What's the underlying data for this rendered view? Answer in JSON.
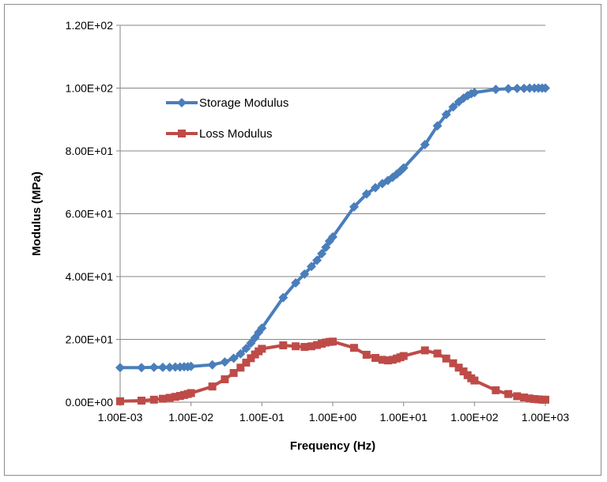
{
  "chart_data": {
    "type": "line",
    "title": "",
    "xlabel": "Frequency (Hz)",
    "ylabel": "Modulus (MPa)",
    "x_scale": "log",
    "xlim": [
      0.001,
      1000
    ],
    "ylim": [
      0,
      120
    ],
    "x_ticks": [
      {
        "value": 0.001,
        "label": "1.00E-03"
      },
      {
        "value": 0.01,
        "label": "1.00E-02"
      },
      {
        "value": 0.1,
        "label": "1.00E-01"
      },
      {
        "value": 1,
        "label": "1.00E+00"
      },
      {
        "value": 10,
        "label": "1.00E+01"
      },
      {
        "value": 100,
        "label": "1.00E+02"
      },
      {
        "value": 1000,
        "label": "1.00E+03"
      }
    ],
    "y_ticks": [
      {
        "value": 0,
        "label": "0.00E+00"
      },
      {
        "value": 20,
        "label": "2.00E+01"
      },
      {
        "value": 40,
        "label": "4.00E+01"
      },
      {
        "value": 60,
        "label": "6.00E+01"
      },
      {
        "value": 80,
        "label": "8.00E+01"
      },
      {
        "value": 100,
        "label": "1.00E+02"
      },
      {
        "value": 120,
        "label": "1.20E+02"
      }
    ],
    "grid": "horizontal",
    "legend_position": "upper-left inside plot",
    "series": [
      {
        "name": "Storage Modulus",
        "color": "#4a7ebb",
        "marker": "diamond",
        "points": [
          [
            0.001,
            11.0
          ],
          [
            0.002,
            11.0
          ],
          [
            0.003,
            11.1
          ],
          [
            0.004,
            11.1
          ],
          [
            0.005,
            11.1
          ],
          [
            0.006,
            11.2
          ],
          [
            0.007,
            11.2
          ],
          [
            0.008,
            11.3
          ],
          [
            0.009,
            11.3
          ],
          [
            0.01,
            11.4
          ],
          [
            0.02,
            11.9
          ],
          [
            0.03,
            12.8
          ],
          [
            0.04,
            14.0
          ],
          [
            0.05,
            15.4
          ],
          [
            0.06,
            17.1
          ],
          [
            0.07,
            18.8
          ],
          [
            0.08,
            20.5
          ],
          [
            0.09,
            22.2
          ],
          [
            0.1,
            23.6
          ],
          [
            0.2,
            33.3
          ],
          [
            0.3,
            38.0
          ],
          [
            0.4,
            40.8
          ],
          [
            0.5,
            43.2
          ],
          [
            0.6,
            45.2
          ],
          [
            0.7,
            47.3
          ],
          [
            0.8,
            49.3
          ],
          [
            0.9,
            51.3
          ],
          [
            1.0,
            52.6
          ],
          [
            2.0,
            62.2
          ],
          [
            3.0,
            66.3
          ],
          [
            4.0,
            68.3
          ],
          [
            5.0,
            69.6
          ],
          [
            6.0,
            70.6
          ],
          [
            7.0,
            71.6
          ],
          [
            8.0,
            72.6
          ],
          [
            9.0,
            73.6
          ],
          [
            10.0,
            74.6
          ],
          [
            20.0,
            82.0
          ],
          [
            30.0,
            88.0
          ],
          [
            40.0,
            91.6
          ],
          [
            50.0,
            94.0
          ],
          [
            60.0,
            95.6
          ],
          [
            70.0,
            96.8
          ],
          [
            80.0,
            97.6
          ],
          [
            90.0,
            98.2
          ],
          [
            100.0,
            98.6
          ],
          [
            200.0,
            99.6
          ],
          [
            300.0,
            99.8
          ],
          [
            400.0,
            99.9
          ],
          [
            500.0,
            99.9
          ],
          [
            600.0,
            100.0
          ],
          [
            700.0,
            100.0
          ],
          [
            800.0,
            100.0
          ],
          [
            900.0,
            100.0
          ],
          [
            1000.0,
            100.0
          ]
        ]
      },
      {
        "name": "Loss Modulus",
        "color": "#be4b48",
        "marker": "square",
        "points": [
          [
            0.001,
            0.3
          ],
          [
            0.002,
            0.5
          ],
          [
            0.003,
            0.8
          ],
          [
            0.004,
            1.1
          ],
          [
            0.005,
            1.4
          ],
          [
            0.006,
            1.7
          ],
          [
            0.007,
            2.0
          ],
          [
            0.008,
            2.3
          ],
          [
            0.009,
            2.6
          ],
          [
            0.01,
            2.9
          ],
          [
            0.02,
            5.0
          ],
          [
            0.03,
            7.3
          ],
          [
            0.04,
            9.3
          ],
          [
            0.05,
            11.0
          ],
          [
            0.06,
            12.6
          ],
          [
            0.07,
            14.0
          ],
          [
            0.08,
            15.2
          ],
          [
            0.09,
            16.2
          ],
          [
            0.1,
            17.0
          ],
          [
            0.2,
            18.1
          ],
          [
            0.3,
            17.8
          ],
          [
            0.4,
            17.6
          ],
          [
            0.5,
            17.8
          ],
          [
            0.6,
            18.2
          ],
          [
            0.7,
            18.6
          ],
          [
            0.8,
            19.0
          ],
          [
            0.9,
            19.2
          ],
          [
            1.0,
            19.3
          ],
          [
            2.0,
            17.3
          ],
          [
            3.0,
            15.1
          ],
          [
            4.0,
            14.1
          ],
          [
            5.0,
            13.5
          ],
          [
            6.0,
            13.3
          ],
          [
            7.0,
            13.5
          ],
          [
            8.0,
            13.9
          ],
          [
            9.0,
            14.3
          ],
          [
            10.0,
            14.7
          ],
          [
            20.0,
            16.5
          ],
          [
            30.0,
            15.5
          ],
          [
            40.0,
            13.9
          ],
          [
            50.0,
            12.4
          ],
          [
            60.0,
            11.0
          ],
          [
            70.0,
            9.8
          ],
          [
            80.0,
            8.6
          ],
          [
            90.0,
            7.6
          ],
          [
            100.0,
            6.9
          ],
          [
            200.0,
            3.8
          ],
          [
            300.0,
            2.6
          ],
          [
            400.0,
            1.9
          ],
          [
            500.0,
            1.5
          ],
          [
            600.0,
            1.2
          ],
          [
            700.0,
            1.0
          ],
          [
            800.0,
            0.9
          ],
          [
            900.0,
            0.8
          ],
          [
            1000.0,
            0.8
          ]
        ]
      }
    ]
  }
}
